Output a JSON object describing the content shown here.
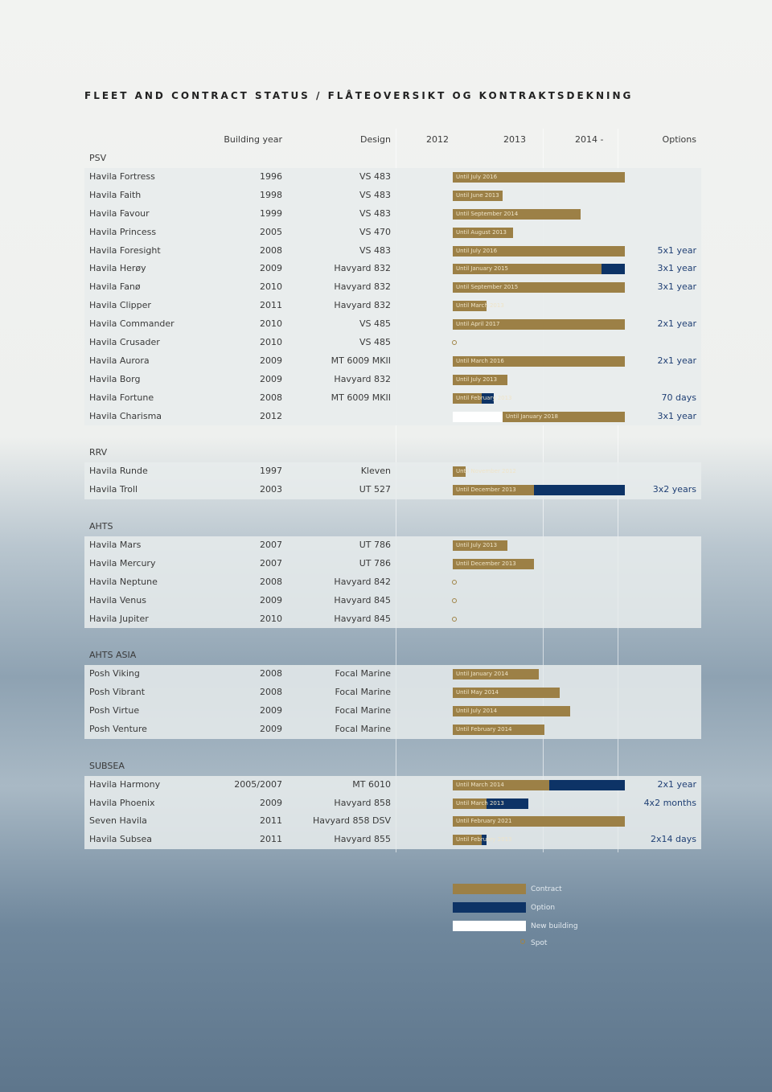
{
  "title": "FLEET AND CONTRACT STATUS / FLÅTEOVERSIKT OG KONTRAKTSDEKNING",
  "headers": {
    "building_year": "Building year",
    "design": "Design",
    "y2012": "2012",
    "y2013": "2013",
    "y2014": "2014 -",
    "options": "Options"
  },
  "sections": [
    {
      "name": "PSV",
      "rows": [
        {
          "vessel": "Havila Fortress",
          "year": "1996",
          "design": "VS 483",
          "contract": "Until July 2016"
        },
        {
          "vessel": "Havila Faith",
          "year": "1998",
          "design": "VS 483",
          "contract": "Until June 2013"
        },
        {
          "vessel": "Havila Favour",
          "year": "1999",
          "design": "VS 483",
          "contract": "Until September 2014"
        },
        {
          "vessel": "Havila Princess",
          "year": "2005",
          "design": "VS 470",
          "contract": "Until August 2013"
        },
        {
          "vessel": "Havila Foresight",
          "year": "2008",
          "design": "VS 483",
          "contract": "Until July 2016",
          "options": "5x1 year"
        },
        {
          "vessel": "Havila Herøy",
          "year": "2009",
          "design": "Havyard 832",
          "contract": "Until January 2015",
          "options": "3x1 year"
        },
        {
          "vessel": "Havila Fanø",
          "year": "2010",
          "design": "Havyard 832",
          "contract": "Until September 2015",
          "options": "3x1 year"
        },
        {
          "vessel": "Havila Clipper",
          "year": "2011",
          "design": "Havyard 832",
          "contract": "Until March 2013"
        },
        {
          "vessel": "Havila Commander",
          "year": "2010",
          "design": "VS 485",
          "contract": "Until April 2017",
          "options": "2x1 year"
        },
        {
          "vessel": "Havila Crusader",
          "year": "2010",
          "design": "VS 485",
          "spot": true
        },
        {
          "vessel": "Havila Aurora",
          "year": "2009",
          "design": "MT 6009 MKII",
          "contract": "Until March 2016",
          "options": "2x1 year"
        },
        {
          "vessel": "Havila Borg",
          "year": "2009",
          "design": "Havyard 832",
          "contract": "Until July 2013"
        },
        {
          "vessel": "Havila Fortune",
          "year": "2008",
          "design": "MT 6009 MKII",
          "contract": "Until February 2013",
          "options": "70 days"
        },
        {
          "vessel": "Havila Charisma",
          "year": "2012",
          "contract": "Until January 2018",
          "options": "3x1 year",
          "new_building": true
        }
      ]
    },
    {
      "name": "RRV",
      "rows": [
        {
          "vessel": "Havila Runde",
          "year": "1997",
          "design": "Kleven",
          "contract": "Until November 2012"
        },
        {
          "vessel": "Havila Troll",
          "year": "2003",
          "design": "UT 527",
          "contract": "Until December 2013",
          "options": "3x2 years"
        }
      ]
    },
    {
      "name": "AHTS",
      "rows": [
        {
          "vessel": "Havila Mars",
          "year": "2007",
          "design": "UT 786",
          "contract": "Until July 2013"
        },
        {
          "vessel": "Havila Mercury",
          "year": "2007",
          "design": "UT 786",
          "contract": "Until December 2013"
        },
        {
          "vessel": "Havila Neptune",
          "year": "2008",
          "design": "Havyard 842",
          "spot": true
        },
        {
          "vessel": "Havila Venus",
          "year": "2009",
          "design": "Havyard 845",
          "spot": true
        },
        {
          "vessel": "Havila Jupiter",
          "year": "2010",
          "design": "Havyard 845",
          "spot": true
        }
      ]
    },
    {
      "name": "AHTS ASIA",
      "rows": [
        {
          "vessel": "Posh Viking",
          "year": "2008",
          "design": "Focal Marine",
          "contract": "Until January 2014"
        },
        {
          "vessel": "Posh Vibrant",
          "year": "2008",
          "design": "Focal Marine",
          "contract": "Until May 2014"
        },
        {
          "vessel": "Posh Virtue",
          "year": "2009",
          "design": "Focal Marine",
          "contract": "Until July 2014"
        },
        {
          "vessel": "Posh Venture",
          "year": "2009",
          "design": "Focal Marine",
          "contract": "Until February 2014"
        }
      ]
    },
    {
      "name": "SUBSEA",
      "rows": [
        {
          "vessel": "Havila Harmony",
          "year": "2005/2007",
          "design": "MT 6010",
          "contract": "Until March 2014",
          "options": "2x1 year"
        },
        {
          "vessel": "Havila Phoenix",
          "year": "2009",
          "design": "Havyard 858",
          "contract": "Until March 2013",
          "options": "4x2 months"
        },
        {
          "vessel": "Seven Havila",
          "year": "2011",
          "design": "Havyard 858 DSV",
          "contract": "Until February 2021"
        },
        {
          "vessel": "Havila Subsea",
          "year": "2011",
          "design": "Havyard 855",
          "contract": "Until February 2013",
          "options": "2x14 days"
        }
      ]
    }
  ],
  "legend": {
    "contract": "Contract",
    "option": "Option",
    "new_building": "New building",
    "spot": "Spot"
  }
}
